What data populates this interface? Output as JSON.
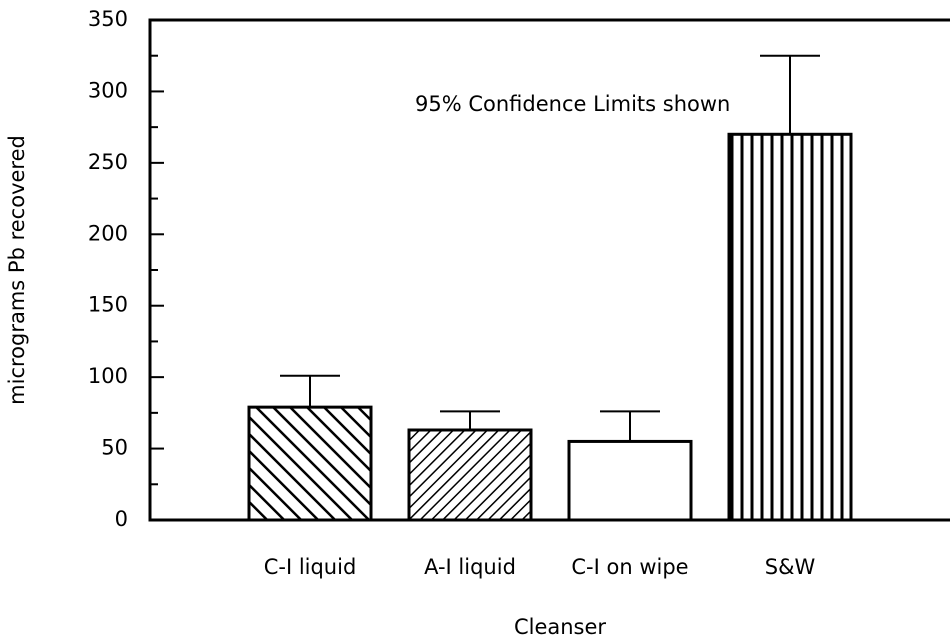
{
  "chart_data": {
    "type": "bar",
    "categories": [
      "C-I liquid",
      "A-I liquid",
      "C-I on wipe",
      "S&W"
    ],
    "values": [
      79,
      63,
      55,
      270
    ],
    "errors": [
      22,
      13,
      21,
      55
    ],
    "hatch": [
      "backslash",
      "slash",
      "none",
      "vertical"
    ],
    "color": "#000000",
    "ylabel": "micrograms Pb recovered",
    "xlabel": "Cleanser",
    "annotation": "95% Confidence Limits shown",
    "ylim": [
      0,
      350
    ],
    "yticks": [
      0,
      50,
      100,
      150,
      200,
      250,
      300,
      350
    ],
    "minor_yticks": [
      25,
      75,
      125,
      175,
      225,
      275,
      325
    ]
  }
}
